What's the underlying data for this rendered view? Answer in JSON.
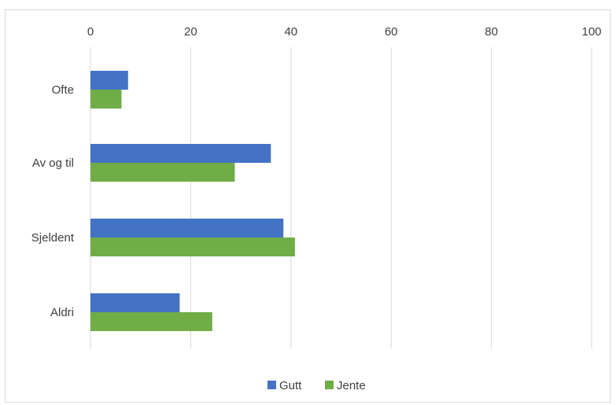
{
  "chart_data": {
    "type": "bar",
    "orientation": "horizontal",
    "categories": [
      "Ofte",
      "Av og til",
      "Sjeldent",
      "Aldri"
    ],
    "series": [
      {
        "name": "Gutt",
        "values": [
          7.5,
          36,
          38.5,
          17.8
        ],
        "color": "#4472c4"
      },
      {
        "name": "Jente",
        "values": [
          6.2,
          28.8,
          40.8,
          24.3
        ],
        "color": "#70ad47"
      }
    ],
    "xlim": [
      0,
      100
    ],
    "xticks": [
      0,
      20,
      40,
      60,
      80,
      100
    ],
    "x_axis_position": "top",
    "grid": true,
    "legend_position": "bottom"
  }
}
